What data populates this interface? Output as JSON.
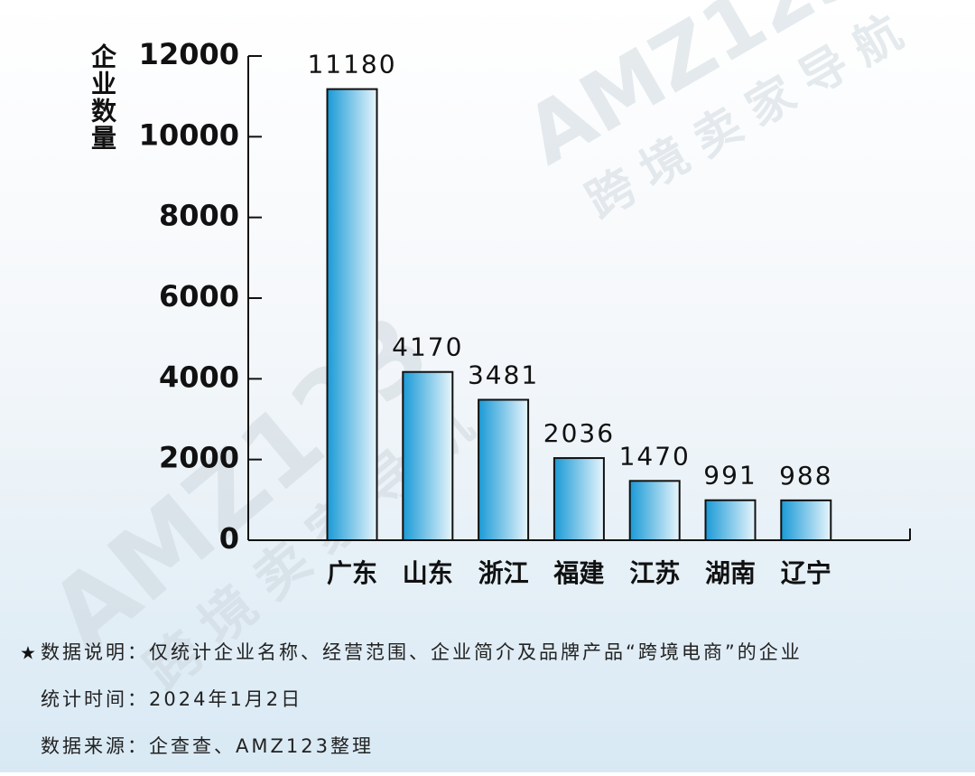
{
  "chart_data": {
    "type": "bar",
    "y_label": "企业数量",
    "categories": [
      "广东",
      "山东",
      "浙江",
      "福建",
      "江苏",
      "湖南",
      "辽宁"
    ],
    "values": [
      11180,
      4170,
      3481,
      2036,
      1470,
      991,
      988
    ],
    "color": "#1a9ad6",
    "ylim": [
      0,
      12000
    ],
    "yticks": [
      0,
      2000,
      4000,
      6000,
      8000,
      10000,
      12000
    ],
    "grid": false
  },
  "notes": [
    "数据说明：仅统计企业名称、经营范围、企业简介及品牌产品“跨境电商”的企业",
    "统计时间：2024年1月2日",
    "数据来源：企查查、AMZ123整理"
  ],
  "watermark": {
    "logo": "AMZ123",
    "text": "跨境卖家导航"
  }
}
